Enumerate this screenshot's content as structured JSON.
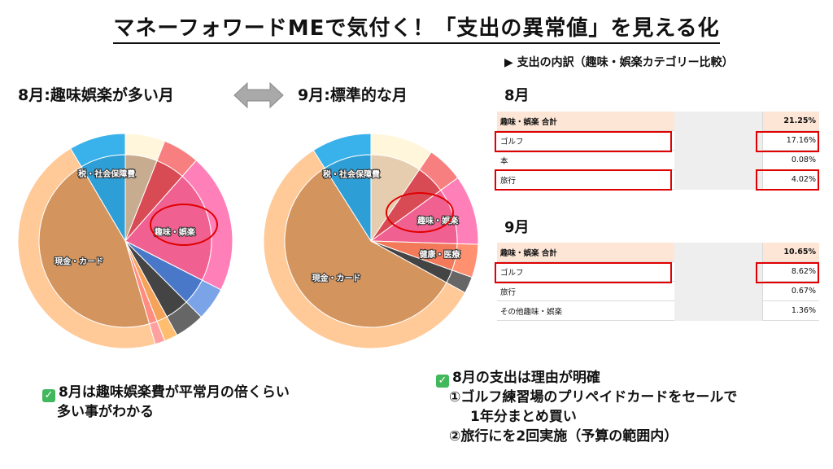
{
  "title": "マネーフォワードMEで気付く！「支出の異常値」を見える化",
  "august_label": "8月:趣味娯楽が多い月",
  "september_label": "9月:標準的な月",
  "breakdown_heading": "▶ 支出の内訳（趣味・娯楽カテゴリー比較）",
  "colors": {
    "highlight": "#e00000",
    "header_bg": "#fde6d6",
    "check": "#41b85b"
  },
  "aug_table": {
    "heading": "8月",
    "header": {
      "label": "趣味・娯楽 合計",
      "value": "21.25%"
    },
    "rows": [
      {
        "label": "ゴルフ",
        "value": "17.16%"
      },
      {
        "label": "本",
        "value": "0.08%"
      },
      {
        "label": "旅行",
        "value": "4.02%"
      }
    ]
  },
  "sep_table": {
    "heading": "9月",
    "header": {
      "label": "趣味・娯楽 合計",
      "value": "10.65%"
    },
    "rows": [
      {
        "label": "ゴルフ",
        "value": "8.62%"
      },
      {
        "label": "旅行",
        "value": "0.67%"
      },
      {
        "label": "その他趣味・娯楽",
        "value": "1.36%"
      }
    ]
  },
  "note_left": {
    "line1": "8月は趣味娯楽費が平常月の倍くらい",
    "line2": "多い事がわかる"
  },
  "note_right": {
    "line1": "8月の支出は理由が明確",
    "line2": "①ゴルフ練習場のプリペイドカードをセールで",
    "line3": "1年分まとめ買い",
    "line4": "②旅行にを2回実施（予算の範囲内）"
  },
  "chart_data": [
    {
      "type": "pie",
      "title": "8月:趣味娯楽が多い月",
      "inner": [
        {
          "label": "",
          "value": 6,
          "color": "#c8ac90"
        },
        {
          "label": "",
          "value": 5.5,
          "color": "#d84b55"
        },
        {
          "label": "趣味・娯楽",
          "value": 21,
          "color": "#f06090"
        },
        {
          "label": "",
          "value": 5,
          "color": "#4a78c8"
        },
        {
          "label": "",
          "value": 4.5,
          "color": "#444444"
        },
        {
          "label": "",
          "value": 2,
          "color": "#f5a25a"
        },
        {
          "label": "",
          "value": 1.5,
          "color": "#ff8c80"
        },
        {
          "label": "現金・カード",
          "value": 46,
          "color": "#d4945e"
        },
        {
          "label": "税・社会保障費",
          "value": 8.5,
          "color": "#2e9fd6"
        }
      ],
      "outer": [
        {
          "value": 6,
          "color": "#fff6dc"
        },
        {
          "value": 5.5,
          "color": "#f77f7f"
        },
        {
          "value": 21,
          "color": "#ff7fb8"
        },
        {
          "value": 5,
          "color": "#7aa3e8"
        },
        {
          "value": 4.5,
          "color": "#666666"
        },
        {
          "value": 2,
          "color": "#ffbd70"
        },
        {
          "value": 1.5,
          "color": "#ffa0a0"
        },
        {
          "value": 46,
          "color": "#ffc998"
        },
        {
          "value": 8.5,
          "color": "#39b1ea"
        }
      ]
    },
    {
      "type": "pie",
      "title": "9月:標準的な月",
      "inner": [
        {
          "label": "",
          "value": 9.5,
          "color": "#e6cdb0"
        },
        {
          "label": "",
          "value": 5.5,
          "color": "#d84b55"
        },
        {
          "label": "趣味・娯楽",
          "value": 10.5,
          "color": "#f06090"
        },
        {
          "label": "健康・医療",
          "value": 5,
          "color": "#f27a5a"
        },
        {
          "label": "",
          "value": 2.5,
          "color": "#444444"
        },
        {
          "label": "現金・カード",
          "value": 58,
          "color": "#d4945e"
        },
        {
          "label": "税・社会保障費",
          "value": 9,
          "color": "#2e9fd6"
        }
      ],
      "outer": [
        {
          "value": 9.5,
          "color": "#fff6dc"
        },
        {
          "value": 5.5,
          "color": "#f77f7f"
        },
        {
          "value": 10.5,
          "color": "#ff7fb8"
        },
        {
          "value": 5,
          "color": "#ff9070"
        },
        {
          "value": 2.5,
          "color": "#666666"
        },
        {
          "value": 58,
          "color": "#ffc998"
        },
        {
          "value": 9,
          "color": "#39b1ea"
        }
      ]
    }
  ]
}
